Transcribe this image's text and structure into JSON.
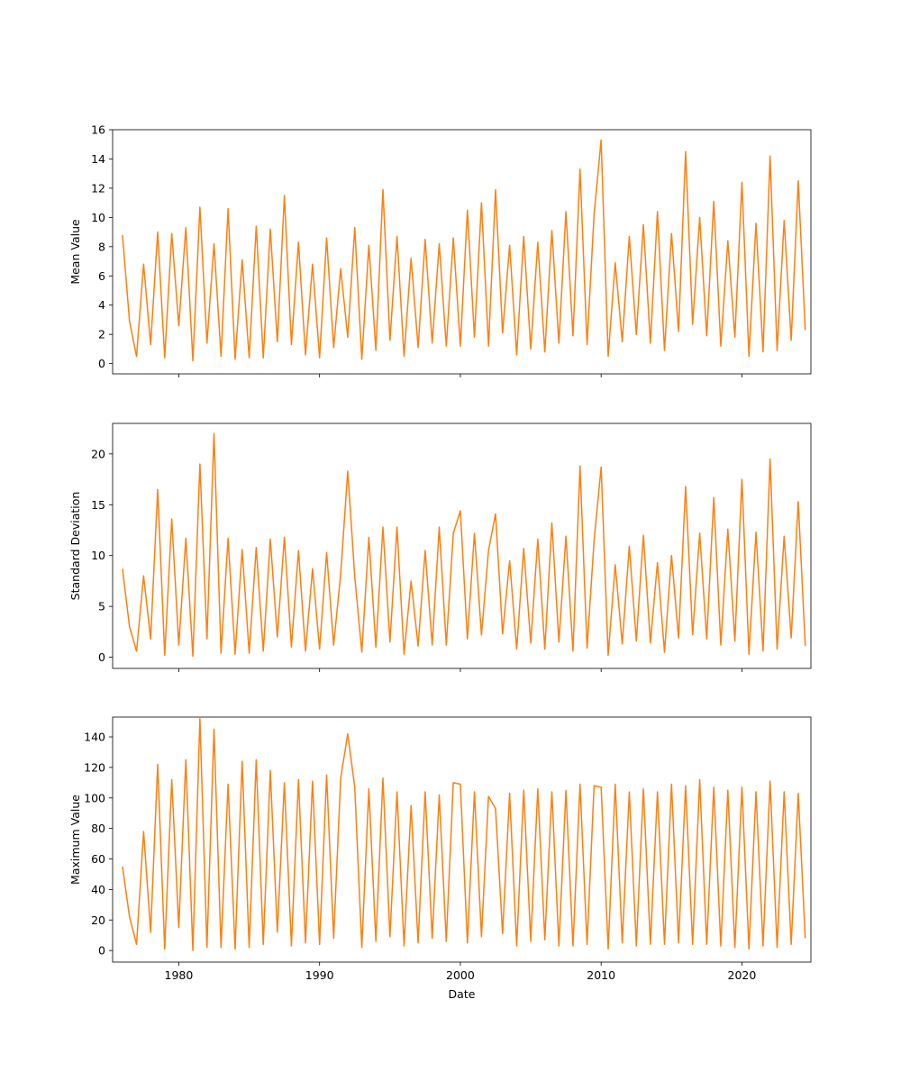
{
  "chart_data": [
    {
      "type": "line",
      "title": "",
      "xlabel": "",
      "ylabel": "Mean Value",
      "xlim": [
        1975.3,
        2024.9
      ],
      "ylim": [
        -0.7,
        16
      ],
      "yticks": [
        0,
        2,
        4,
        6,
        8,
        10,
        12,
        14,
        16
      ],
      "xticks": [
        1980,
        1990,
        2000,
        2010,
        2020
      ],
      "show_xtick_labels": false,
      "grid": false,
      "color": "#ff7f0e",
      "x": [
        1976.0,
        1976.5,
        1977.0,
        1977.5,
        1978.0,
        1978.5,
        1979.0,
        1979.5,
        1980.0,
        1980.5,
        1981.0,
        1981.5,
        1982.0,
        1982.5,
        1983.0,
        1983.5,
        1984.0,
        1984.5,
        1985.0,
        1985.5,
        1986.0,
        1986.5,
        1987.0,
        1987.5,
        1988.0,
        1988.5,
        1989.0,
        1989.5,
        1990.0,
        1990.5,
        1991.0,
        1991.5,
        1992.0,
        1992.5,
        1993.0,
        1993.5,
        1994.0,
        1994.5,
        1995.0,
        1995.5,
        1996.0,
        1996.5,
        1997.0,
        1997.5,
        1998.0,
        1998.5,
        1999.0,
        1999.5,
        2000.0,
        2000.5,
        2001.0,
        2001.5,
        2002.0,
        2002.5,
        2003.0,
        2003.5,
        2004.0,
        2004.5,
        2005.0,
        2005.5,
        2006.0,
        2006.5,
        2007.0,
        2007.5,
        2008.0,
        2008.5,
        2009.0,
        2009.5,
        2010.0,
        2010.5,
        2011.0,
        2011.5,
        2012.0,
        2012.5,
        2013.0,
        2013.5,
        2014.0,
        2014.5,
        2015.0,
        2015.5,
        2016.0,
        2016.5,
        2017.0,
        2017.5,
        2018.0,
        2018.5,
        2019.0,
        2019.5,
        2020.0,
        2020.5,
        2021.0,
        2021.5,
        2022.0,
        2022.5,
        2023.0,
        2023.5,
        2024.0,
        2024.5
      ],
      "values": [
        8.8,
        2.9,
        0.5,
        6.8,
        1.3,
        9.0,
        0.4,
        8.9,
        2.6,
        9.3,
        0.2,
        10.7,
        1.4,
        8.2,
        0.5,
        10.6,
        0.3,
        7.1,
        0.4,
        9.4,
        0.4,
        9.2,
        1.5,
        11.5,
        1.3,
        8.3,
        0.6,
        6.8,
        0.4,
        8.6,
        1.1,
        6.5,
        1.8,
        9.3,
        0.3,
        8.1,
        0.9,
        11.9,
        1.6,
        8.7,
        0.5,
        7.2,
        1.1,
        8.5,
        1.4,
        8.2,
        1.2,
        8.6,
        1.2,
        10.5,
        1.8,
        11.0,
        1.2,
        11.9,
        2.1,
        8.1,
        0.6,
        8.7,
        1.0,
        8.3,
        0.8,
        9.1,
        1.4,
        10.4,
        1.9,
        13.3,
        1.3,
        10.2,
        15.3,
        0.5,
        6.9,
        1.5,
        8.7,
        2.0,
        9.5,
        1.4,
        10.4,
        0.9,
        8.9,
        2.2,
        14.5,
        2.7,
        10.0,
        1.9,
        11.1,
        1.2,
        8.4,
        1.8,
        12.4,
        0.5,
        9.6,
        0.8,
        14.2,
        0.9,
        9.8,
        1.6,
        12.5,
        2.3
      ]
    },
    {
      "type": "line",
      "title": "",
      "xlabel": "",
      "ylabel": "Standard Deviation",
      "xlim": [
        1975.3,
        2024.9
      ],
      "ylim": [
        -1.1,
        23
      ],
      "yticks": [
        0,
        5,
        10,
        15,
        20
      ],
      "xticks": [
        1980,
        1990,
        2000,
        2010,
        2020
      ],
      "show_xtick_labels": false,
      "grid": false,
      "color": "#ff7f0e",
      "x": [
        1976.0,
        1976.5,
        1977.0,
        1977.5,
        1978.0,
        1978.5,
        1979.0,
        1979.5,
        1980.0,
        1980.5,
        1981.0,
        1981.5,
        1982.0,
        1982.5,
        1983.0,
        1983.5,
        1984.0,
        1984.5,
        1985.0,
        1985.5,
        1986.0,
        1986.5,
        1987.0,
        1987.5,
        1988.0,
        1988.5,
        1989.0,
        1989.5,
        1990.0,
        1990.5,
        1991.0,
        1991.5,
        1992.0,
        1992.5,
        1993.0,
        1993.5,
        1994.0,
        1994.5,
        1995.0,
        1995.5,
        1996.0,
        1996.5,
        1997.0,
        1997.5,
        1998.0,
        1998.5,
        1999.0,
        1999.5,
        2000.0,
        2000.5,
        2001.0,
        2001.5,
        2002.0,
        2002.5,
        2003.0,
        2003.5,
        2004.0,
        2004.5,
        2005.0,
        2005.5,
        2006.0,
        2006.5,
        2007.0,
        2007.5,
        2008.0,
        2008.5,
        2009.0,
        2009.5,
        2010.0,
        2010.5,
        2011.0,
        2011.5,
        2012.0,
        2012.5,
        2013.0,
        2013.5,
        2014.0,
        2014.5,
        2015.0,
        2015.5,
        2016.0,
        2016.5,
        2017.0,
        2017.5,
        2018.0,
        2018.5,
        2019.0,
        2019.5,
        2020.0,
        2020.5,
        2021.0,
        2021.5,
        2022.0,
        2022.5,
        2023.0,
        2023.5,
        2024.0,
        2024.5
      ],
      "values": [
        8.7,
        3.0,
        0.6,
        8.0,
        1.8,
        16.5,
        0.2,
        13.6,
        1.2,
        11.7,
        0.1,
        19.0,
        1.8,
        22.0,
        0.4,
        11.7,
        0.3,
        10.6,
        0.4,
        10.8,
        0.6,
        11.6,
        2.0,
        11.8,
        1.0,
        10.5,
        0.6,
        8.7,
        0.8,
        10.3,
        1.2,
        8.2,
        18.3,
        7.9,
        0.5,
        11.8,
        1.0,
        12.8,
        1.5,
        12.8,
        0.3,
        7.5,
        1.1,
        10.5,
        1.2,
        12.8,
        1.2,
        12.2,
        14.4,
        1.8,
        12.2,
        2.2,
        10.5,
        14.1,
        2.3,
        9.5,
        0.8,
        10.7,
        1.4,
        11.6,
        0.8,
        13.2,
        1.5,
        11.9,
        0.6,
        18.8,
        0.9,
        11.5,
        18.7,
        0.2,
        9.1,
        1.3,
        10.9,
        1.6,
        12.0,
        1.4,
        9.3,
        0.5,
        10.0,
        1.9,
        16.8,
        2.2,
        12.2,
        1.8,
        15.7,
        1.2,
        12.6,
        1.6,
        17.5,
        0.3,
        12.3,
        0.6,
        19.5,
        0.8,
        11.9,
        1.9,
        15.3,
        1.1
      ]
    },
    {
      "type": "line",
      "title": "",
      "xlabel": "Date",
      "ylabel": "Maximum Value",
      "xlim": [
        1975.3,
        2024.9
      ],
      "ylim": [
        -7.6,
        153
      ],
      "yticks": [
        0,
        20,
        40,
        60,
        80,
        100,
        120,
        140
      ],
      "xticks": [
        1980,
        1990,
        2000,
        2010,
        2020
      ],
      "show_xtick_labels": true,
      "grid": false,
      "color": "#ff7f0e",
      "x": [
        1976.0,
        1976.5,
        1977.0,
        1977.5,
        1978.0,
        1978.5,
        1979.0,
        1979.5,
        1980.0,
        1980.5,
        1981.0,
        1981.5,
        1982.0,
        1982.5,
        1983.0,
        1983.5,
        1984.0,
        1984.5,
        1985.0,
        1985.5,
        1986.0,
        1986.5,
        1987.0,
        1987.5,
        1988.0,
        1988.5,
        1989.0,
        1989.5,
        1990.0,
        1990.5,
        1991.0,
        1991.5,
        1992.0,
        1992.5,
        1993.0,
        1993.5,
        1994.0,
        1994.5,
        1995.0,
        1995.5,
        1996.0,
        1996.5,
        1997.0,
        1997.5,
        1998.0,
        1998.5,
        1999.0,
        1999.5,
        2000.0,
        2000.5,
        2001.0,
        2001.5,
        2002.0,
        2002.5,
        2003.0,
        2003.5,
        2004.0,
        2004.5,
        2005.0,
        2005.5,
        2006.0,
        2006.5,
        2007.0,
        2007.5,
        2008.0,
        2008.5,
        2009.0,
        2009.5,
        2010.0,
        2010.5,
        2011.0,
        2011.5,
        2012.0,
        2012.5,
        2013.0,
        2013.5,
        2014.0,
        2014.5,
        2015.0,
        2015.5,
        2016.0,
        2016.5,
        2017.0,
        2017.5,
        2018.0,
        2018.5,
        2019.0,
        2019.5,
        2020.0,
        2020.5,
        2021.0,
        2021.5,
        2022.0,
        2022.5,
        2023.0,
        2023.5,
        2024.0,
        2024.5
      ],
      "values": [
        55,
        22,
        4,
        78,
        12,
        122,
        1,
        112,
        15,
        125,
        0,
        152,
        2,
        145,
        2,
        109,
        1,
        124,
        2,
        125,
        4,
        118,
        12,
        110,
        3,
        112,
        5,
        111,
        4,
        115,
        8,
        113,
        142,
        107,
        2,
        106,
        6,
        113,
        9,
        104,
        3,
        95,
        5,
        104,
        8,
        102,
        6,
        110,
        109,
        5,
        104,
        9,
        101,
        93,
        11,
        103,
        3,
        105,
        6,
        106,
        7,
        104,
        3,
        105,
        3,
        109,
        4,
        108,
        107,
        1,
        109,
        5,
        104,
        3,
        106,
        4,
        104,
        4,
        109,
        5,
        108,
        4,
        112,
        4,
        107,
        3,
        105,
        2,
        107,
        1,
        104,
        3,
        111,
        2,
        104,
        4,
        103,
        8
      ]
    }
  ]
}
